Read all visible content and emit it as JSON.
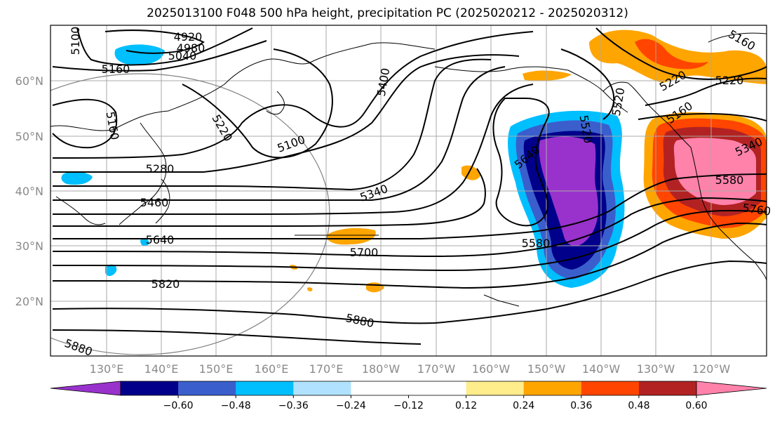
{
  "title": "2025013100 F048 500 hPa height, precipitation PC (2025020212 - 2025020312)",
  "lat_ticks": [
    "60°N",
    "50°N",
    "40°N",
    "30°N",
    "20°N"
  ],
  "lon_ticks": [
    "130°E",
    "140°E",
    "150°E",
    "160°E",
    "170°E",
    "180°W",
    "170°W",
    "160°W",
    "150°W",
    "140°W",
    "130°W",
    "120°W"
  ],
  "contour_labels": [
    "4920",
    "4980",
    "5040",
    "5100",
    "5160",
    "5160",
    "5160",
    "5220",
    "5220",
    "5100",
    "5400",
    "5280",
    "5340",
    "5460",
    "5520",
    "5640",
    "5640",
    "5580",
    "5700",
    "5820",
    "5880",
    "5520",
    "5220",
    "5160",
    "5340",
    "5580",
    "5760",
    "5880"
  ],
  "colorbar": {
    "colors": [
      "#9932cc",
      "#00008b",
      "#3a5fcd",
      "#00bfff",
      "#b0e2ff",
      "#ffffff",
      "#ffffff",
      "#ffec8b",
      "#ffa500",
      "#ff4500",
      "#b22222",
      "#ff82ab"
    ],
    "tick_labels": [
      "−0.60",
      "−0.48",
      "−0.36",
      "−0.24",
      "−0.12",
      "0.12",
      "0.24",
      "0.36",
      "0.48",
      "0.60"
    ]
  }
}
